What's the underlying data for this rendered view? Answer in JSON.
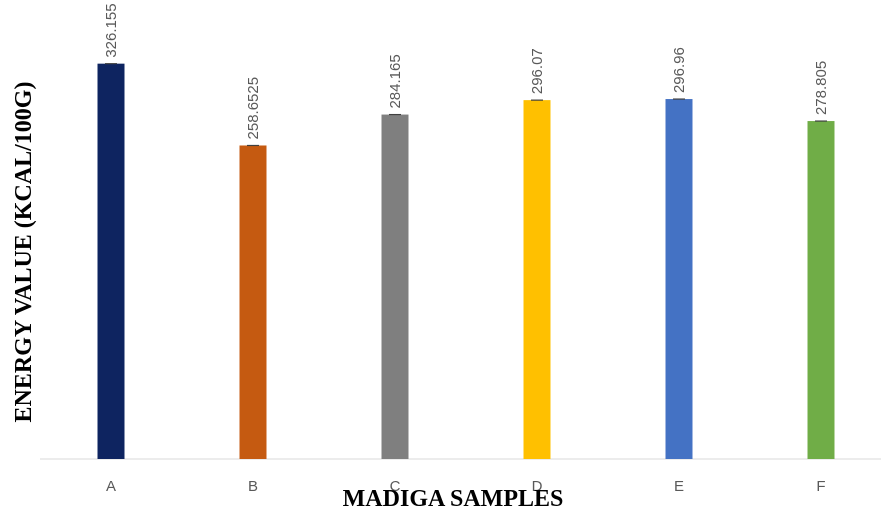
{
  "chart_data": {
    "type": "bar",
    "title": "",
    "xlabel": "MADIGA SAMPLES",
    "ylabel": "ENERGY VALUE (KCAL/100G)",
    "categories": [
      "A",
      "B",
      "C",
      "D",
      "E",
      "F"
    ],
    "values": [
      326.155,
      258.6525,
      284.165,
      296.07,
      296.96,
      278.805
    ],
    "value_labels": [
      "326.155",
      "258.6525",
      "284.165",
      "296.07",
      "296.96",
      "278.805"
    ],
    "colors": [
      "#0E2460",
      "#C55A11",
      "#7F7F7F",
      "#FFC000",
      "#4472C4",
      "#70AD47"
    ],
    "error_bars": true,
    "ylim": [
      0,
      330
    ],
    "grid": false,
    "legend": "none"
  }
}
